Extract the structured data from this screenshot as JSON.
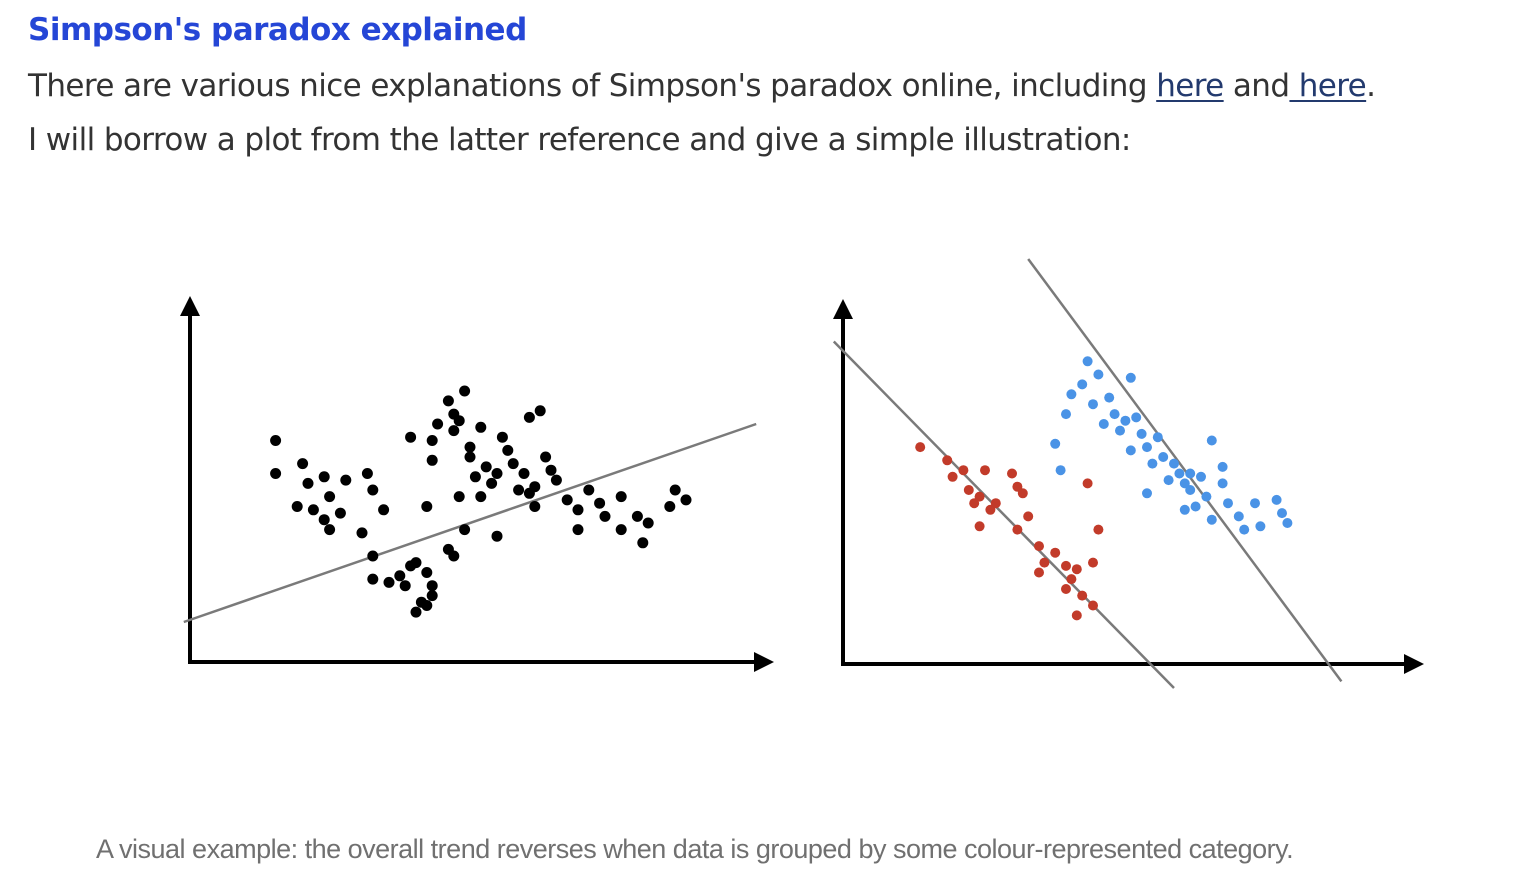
{
  "article": {
    "heading": "Simpson's paradox explained",
    "line1_text": "There are various nice explanations of Simpson's paradox online, including ",
    "link1": "here",
    "line1_mid": " and",
    "link2": " here",
    "line1_end": ".",
    "line2": "I will borrow a plot from the latter reference and give a simple illustration:"
  },
  "figure": {
    "caption": "A visual example: the overall trend reverses when data is grouped by some colour-represented category."
  },
  "chart_data": [
    {
      "type": "scatter",
      "title": "",
      "xlabel": "",
      "ylabel": "",
      "xlim": [
        0,
        100
      ],
      "ylim": [
        0,
        100
      ],
      "grid": false,
      "series": [
        {
          "color": "#000000",
          "points": [
            [
              14,
              65
            ],
            [
              14,
              55
            ],
            [
              19,
              58
            ],
            [
              20,
              52
            ],
            [
              18,
              45
            ],
            [
              21,
              44
            ],
            [
              23,
              54
            ],
            [
              24,
              48
            ],
            [
              23,
              41
            ],
            [
              26,
              43
            ],
            [
              24,
              38
            ],
            [
              27,
              53
            ],
            [
              31,
              55
            ],
            [
              32,
              50
            ],
            [
              30,
              37
            ],
            [
              34,
              44
            ],
            [
              32,
              30
            ],
            [
              35,
              22
            ],
            [
              32,
              23
            ],
            [
              37,
              24
            ],
            [
              38,
              21
            ],
            [
              39,
              27
            ],
            [
              42,
              25
            ],
            [
              40,
              28
            ],
            [
              41,
              16
            ],
            [
              40,
              13
            ],
            [
              43,
              21
            ],
            [
              42,
              15
            ],
            [
              43,
              18
            ],
            [
              47,
              30
            ],
            [
              46,
              32
            ],
            [
              42,
              45
            ],
            [
              49,
              38
            ],
            [
              48,
              48
            ],
            [
              43,
              59
            ],
            [
              43,
              65
            ],
            [
              47,
              68
            ],
            [
              48,
              71
            ],
            [
              47,
              73
            ],
            [
              52,
              69
            ],
            [
              50,
              63
            ],
            [
              50,
              60
            ],
            [
              51,
              54
            ],
            [
              52,
              48
            ],
            [
              54,
              52
            ],
            [
              53,
              57
            ],
            [
              55,
              55
            ],
            [
              56,
              66
            ],
            [
              57,
              62
            ],
            [
              58,
              58
            ],
            [
              59,
              50
            ],
            [
              60,
              55
            ],
            [
              61,
              49
            ],
            [
              62,
              51
            ],
            [
              62,
              45
            ],
            [
              64,
              60
            ],
            [
              65,
              56
            ],
            [
              66,
              53
            ],
            [
              68,
              47
            ],
            [
              70,
              44
            ],
            [
              70,
              38
            ],
            [
              72,
              50
            ],
            [
              74,
              46
            ],
            [
              75,
              42
            ],
            [
              78,
              48
            ],
            [
              78,
              38
            ],
            [
              81,
              42
            ],
            [
              82,
              34
            ],
            [
              83,
              40
            ],
            [
              87,
              45
            ],
            [
              88,
              50
            ],
            [
              90,
              47
            ],
            [
              55,
              36
            ],
            [
              61,
              72
            ],
            [
              49,
              80
            ],
            [
              46,
              77
            ],
            [
              44,
              70
            ],
            [
              39,
              66
            ],
            [
              63,
              74
            ]
          ],
          "trend": [
            [
              -3,
              10
            ],
            [
              103,
              70
            ]
          ]
        }
      ]
    },
    {
      "type": "scatter",
      "title": "",
      "xlabel": "",
      "ylabel": "",
      "xlim": [
        0,
        100
      ],
      "ylim": [
        0,
        100
      ],
      "grid": false,
      "series": [
        {
          "color": "#c23b2a",
          "points": [
            [
              13,
              63
            ],
            [
              19,
              54
            ],
            [
              18,
              59
            ],
            [
              21,
              56
            ],
            [
              22,
              50
            ],
            [
              23,
              46
            ],
            [
              25,
              56
            ],
            [
              24,
              48
            ],
            [
              26,
              44
            ],
            [
              24,
              39
            ],
            [
              27,
              46
            ],
            [
              30,
              55
            ],
            [
              31,
              51
            ],
            [
              32,
              49
            ],
            [
              33,
              42
            ],
            [
              31,
              38
            ],
            [
              35,
              33
            ],
            [
              36,
              28
            ],
            [
              35,
              25
            ],
            [
              38,
              31
            ],
            [
              40,
              27
            ],
            [
              40,
              20
            ],
            [
              41,
              23
            ],
            [
              42,
              26
            ],
            [
              42,
              12
            ],
            [
              43,
              18
            ],
            [
              45,
              15
            ],
            [
              45,
              28
            ],
            [
              44,
              52
            ],
            [
              46,
              38
            ]
          ],
          "trend": [
            [
              -3,
              95
            ],
            [
              60,
              -10
            ]
          ]
        },
        {
          "color": "#4a93e6",
          "points": [
            [
              40,
              73
            ],
            [
              41,
              79
            ],
            [
              43,
              82
            ],
            [
              44,
              89
            ],
            [
              46,
              85
            ],
            [
              45,
              76
            ],
            [
              47,
              70
            ],
            [
              48,
              78
            ],
            [
              49,
              73
            ],
            [
              50,
              68
            ],
            [
              51,
              71
            ],
            [
              52,
              62
            ],
            [
              53,
              72
            ],
            [
              54,
              67
            ],
            [
              55,
              63
            ],
            [
              56,
              58
            ],
            [
              57,
              66
            ],
            [
              58,
              60
            ],
            [
              59,
              53
            ],
            [
              60,
              58
            ],
            [
              61,
              55
            ],
            [
              62,
              52
            ],
            [
              63,
              50
            ],
            [
              64,
              45
            ],
            [
              65,
              54
            ],
            [
              66,
              48
            ],
            [
              67,
              41
            ],
            [
              69,
              52
            ],
            [
              70,
              46
            ],
            [
              72,
              42
            ],
            [
              73,
              38
            ],
            [
              75,
              46
            ],
            [
              76,
              39
            ],
            [
              79,
              47
            ],
            [
              80,
              43
            ],
            [
              81,
              40
            ],
            [
              55,
              49
            ],
            [
              62,
              44
            ],
            [
              69,
              57
            ],
            [
              63,
              55
            ],
            [
              67,
              65
            ],
            [
              52,
              84
            ],
            [
              38,
              64
            ],
            [
              39,
              56
            ]
          ],
          "trend": [
            [
              33,
              120
            ],
            [
              91,
              -8
            ]
          ]
        }
      ]
    }
  ]
}
